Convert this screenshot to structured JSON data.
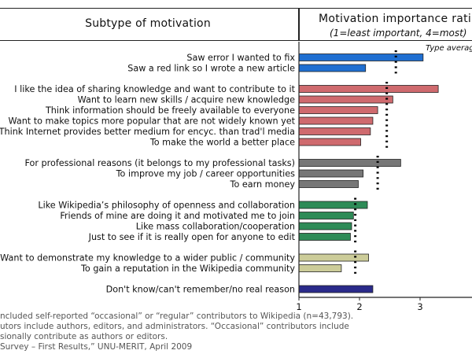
{
  "header": {
    "left_title": "Subtype of motivation",
    "right_title": "Motivation importance rati",
    "right_subtitle": "(1=least important, 4=most)"
  },
  "chart_data": {
    "type": "bar",
    "orientation": "horizontal",
    "xlim": [
      1,
      4
    ],
    "xticks": [
      "1",
      "2",
      "3"
    ],
    "type_average_label": "Type averag",
    "groups": [
      {
        "average": 2.6,
        "color": "#1f6fd1",
        "items": [
          {
            "label": "Saw error I wanted to fix",
            "value": 3.05
          },
          {
            "label": "Saw a red link so I wrote a new article",
            "value": 2.1
          }
        ]
      },
      {
        "average": 2.45,
        "color": "#cf6a6e",
        "items": [
          {
            "label": "I like the idea of sharing knowledge and want to contribute to it",
            "value": 3.3
          },
          {
            "label": "Want to learn new skills / acquire new knowledge",
            "value": 2.55
          },
          {
            "label": "Think information should be freely available to everyone",
            "value": 2.3
          },
          {
            "label": "Want to make topics more popular that are not widely known yet",
            "value": 2.22
          },
          {
            "label": "Think Internet provides better medium for encyc. than trad'l media",
            "value": 2.18
          },
          {
            "label": "To make the world a better place",
            "value": 2.02
          }
        ]
      },
      {
        "average": 2.3,
        "color": "#777777",
        "items": [
          {
            "label": "For professional reasons (it belongs to my professional tasks)",
            "value": 2.68
          },
          {
            "label": "To improve my job / career opportunities",
            "value": 2.06
          },
          {
            "label": "To earn money",
            "value": 1.98
          }
        ]
      },
      {
        "average": 1.93,
        "color": "#2e8b57",
        "items": [
          {
            "label": "Like Wikipedia’s philosophy of openness and collaboration",
            "value": 2.13
          },
          {
            "label": "Friends of mine are doing it and motivated me to join",
            "value": 1.9
          },
          {
            "label": "Like mass collaboration/cooperation",
            "value": 1.87
          },
          {
            "label": "Just to see if it is really open for anyone to edit",
            "value": 1.85
          }
        ]
      },
      {
        "average": 1.93,
        "color": "#cccc99",
        "items": [
          {
            "label": "Want to demonstrate my knowledge to a wider public / community",
            "value": 2.15
          },
          {
            "label": "To gain a reputation in the Wikipedia community",
            "value": 1.7
          }
        ]
      },
      {
        "average": null,
        "color": "#2a2a8a",
        "items": [
          {
            "label": "Don't know/can't remember/no real reason",
            "value": 2.22
          }
        ]
      }
    ]
  },
  "footnotes": [
    "ncluded self-reported “occasional” or “regular” contributors to Wikipedia (n=43,793).",
    "utors include authors, editors, and administrators. “Occasional” contributors include",
    "sionally contribute as authors or editors.",
    "Survey – First Results,” UNU-MERIT, April 2009"
  ]
}
